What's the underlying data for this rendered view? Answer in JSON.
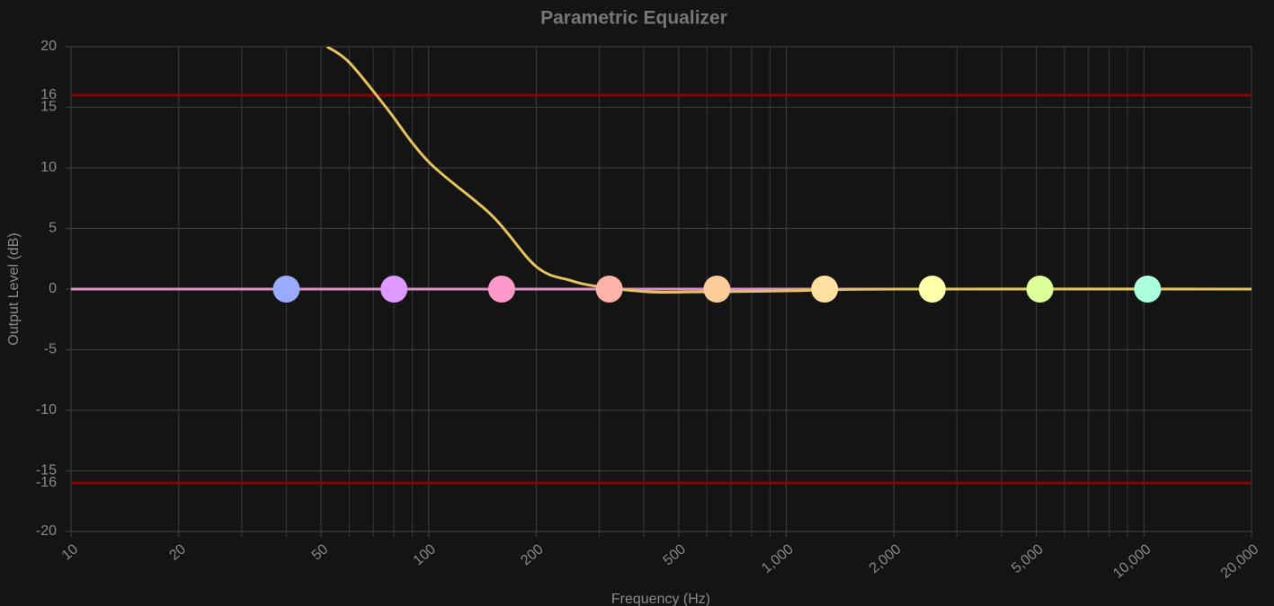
{
  "chart_data": {
    "type": "line",
    "title": "Parametric Equalizer",
    "x_label": "Frequency (Hz)",
    "y_label": "Output Level (dB)",
    "log_x": true,
    "grid": true,
    "xlim": [
      10,
      20000
    ],
    "ylim": [
      -20,
      20
    ],
    "xticks": [
      10,
      20,
      50,
      100,
      200,
      500,
      {
        "value": 1000,
        "label": "1,000"
      },
      {
        "value": 2000,
        "label": "2,000"
      },
      {
        "value": 5000,
        "label": "5,000"
      },
      {
        "value": 10000,
        "label": "10,000"
      },
      {
        "value": 20000,
        "label": "20,000"
      }
    ],
    "x_minor_gridlines": [
      30,
      40,
      60,
      70,
      80,
      90,
      300,
      400,
      600,
      700,
      800,
      900,
      3000,
      4000,
      6000,
      7000,
      8000,
      9000
    ],
    "yticks": [
      -20,
      -15,
      -10,
      -5,
      0,
      5,
      10,
      15,
      20
    ],
    "limit_lines": [
      {
        "value": 16,
        "label": "16",
        "color": "#8b0000"
      },
      {
        "value": -16,
        "label": "-16",
        "color": "#8b0000"
      }
    ],
    "series": [
      {
        "color": "#e6c35c",
        "x": [
          52,
          60,
          76,
          100,
          150,
          200,
          250,
          300,
          400,
          500,
          1000,
          2000,
          20000
        ],
        "values": [
          20,
          18.7,
          15,
          10.5,
          6.1,
          1.85,
          0.7,
          0.2,
          -0.2,
          -0.25,
          -0.15,
          0,
          0
        ]
      },
      {
        "color": "#e090c8",
        "x": [
          10,
          20000
        ],
        "values": [
          0,
          0
        ]
      }
    ],
    "filters": {
      "x": [
        40,
        80,
        160,
        320,
        640,
        1280,
        2560,
        5120,
        10240
      ],
      "values": [
        0,
        0,
        0,
        0,
        0,
        0,
        0,
        0,
        0
      ],
      "colors": [
        "#9aaaff",
        "#dd99ff",
        "#ff99cc",
        "#ffb3a8",
        "#ffcc99",
        "#ffe0a0",
        "#ffffaa",
        "#ddff99",
        "#aaffdd"
      ]
    }
  }
}
